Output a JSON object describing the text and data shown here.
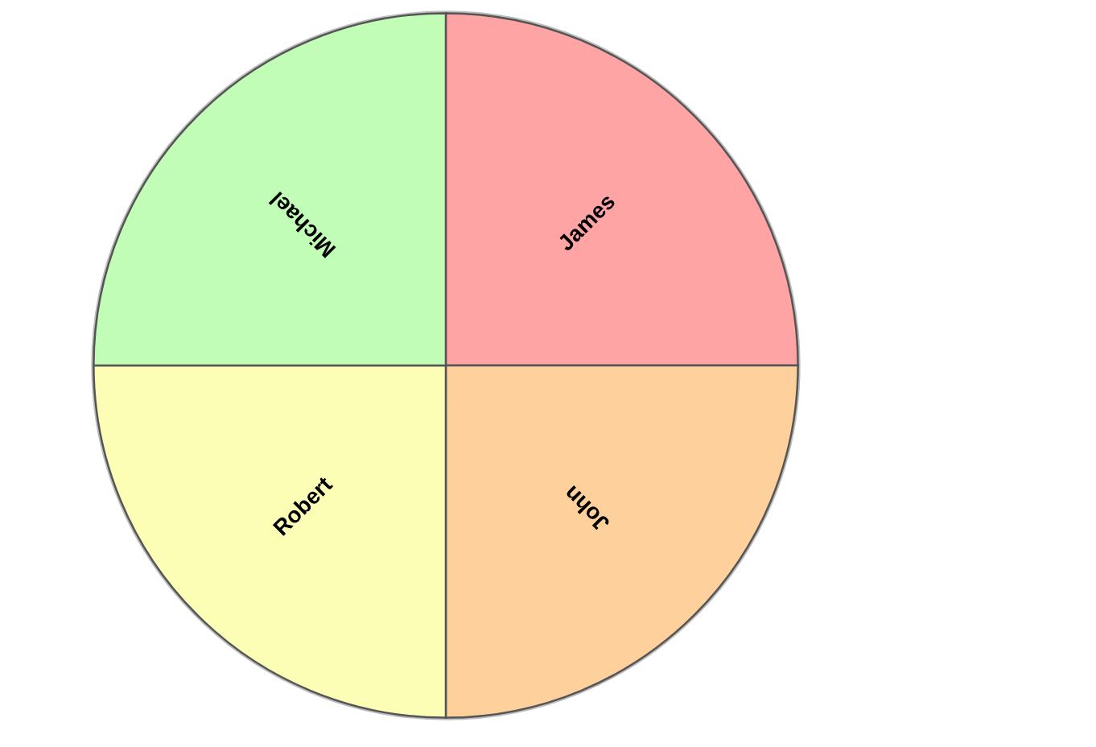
{
  "chart_data": {
    "type": "pie",
    "categories": [
      "James",
      "John",
      "Robert",
      "Michael"
    ],
    "values": [
      25,
      25,
      25,
      25
    ],
    "colors": [
      "#ffa4a4",
      "#fdd09c",
      "#fbfeb4",
      "#c1fdb6"
    ]
  }
}
